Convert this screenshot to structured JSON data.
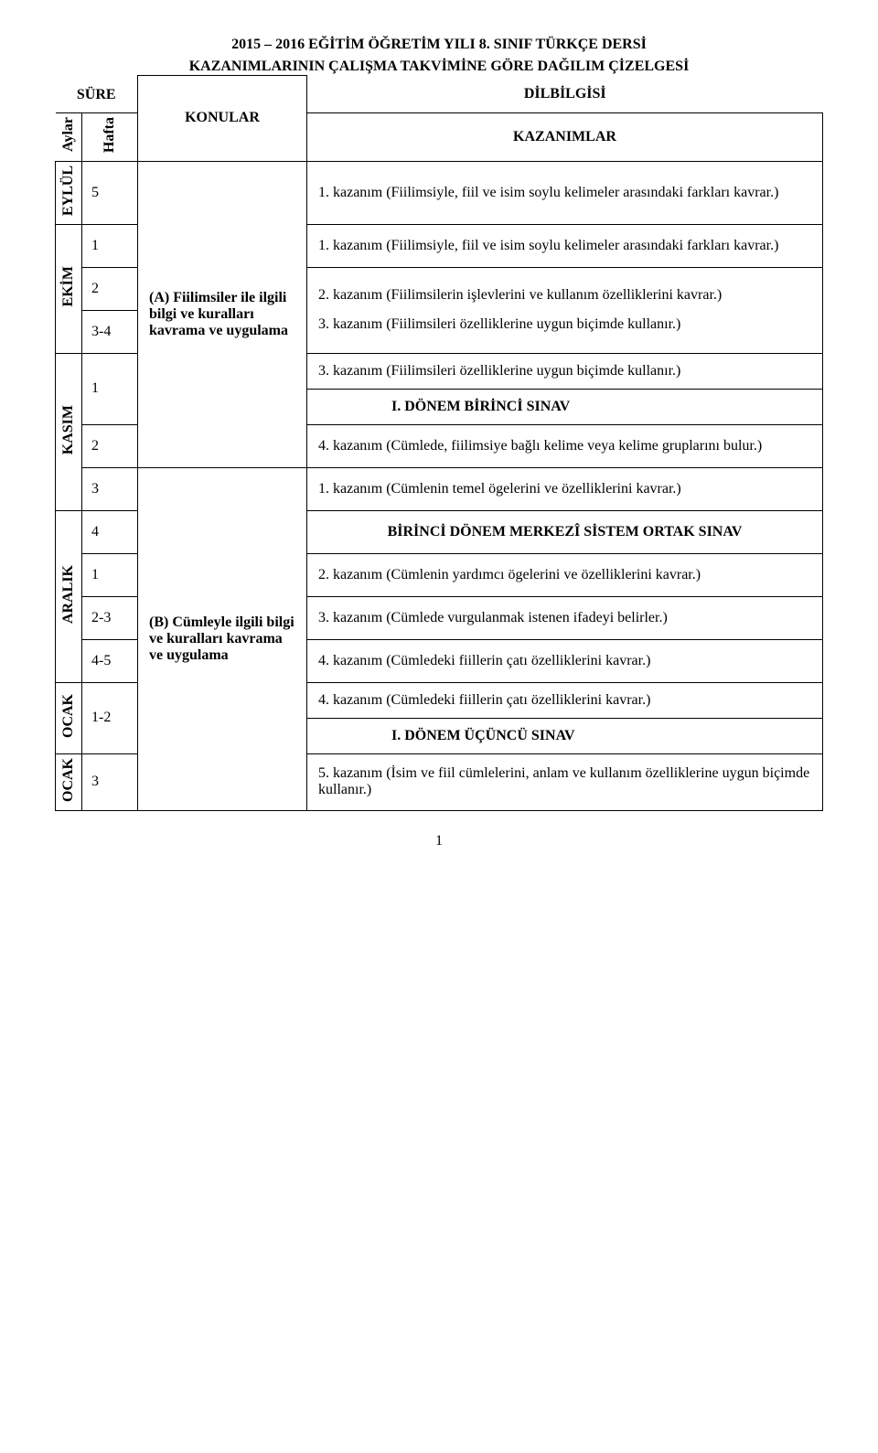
{
  "header": {
    "title1": "2015 – 2016 EĞİTİM ÖĞRETİM YILI 8. SINIF TÜRKÇE DERSİ",
    "title2": "KAZANIMLARININ ÇALIŞMA TAKVİMİNE GÖRE DAĞILIM ÇİZELGESİ",
    "dilbilgisi": "DİLBİLGİSİ",
    "sure": "SÜRE",
    "aylar": "Aylar",
    "hafta": "Hafta",
    "konular": "KONULAR",
    "kazanimlar": "KAZANIMLAR"
  },
  "months": {
    "eylul": "EYLÜL",
    "ekim": "EKİM",
    "kasim": "KASIM",
    "aralik": "ARALIK",
    "ocak1": "OCAK",
    "ocak2": "OCAK"
  },
  "weeks": {
    "w5": "5",
    "w1a": "1",
    "w2a": "2",
    "w34": "3-4",
    "w1b": "1",
    "w2b": "2",
    "w3": "3",
    "w4": "4",
    "w1c": "1",
    "w23": "2-3",
    "w45": "4-5",
    "w12": "1-2",
    "w3b": "3"
  },
  "topics": {
    "a": "(A)  Fiilimsiler ile ilgili bilgi ve kuralları kavrama ve uygulama",
    "b": "(B)  Cümleyle ilgili bilgi ve kuralları kavrama ve uygulama"
  },
  "kaz": {
    "k1": "1. kazanım (Fiilimsiyle, fiil ve isim soylu kelimeler arasındaki farkları kavrar.)",
    "k1b": "1. kazanım (Fiilimsiyle, fiil ve isim soylu kelimeler arasındaki farkları kavrar.)",
    "k2": "2. kazanım (Fiilimsilerin işlevlerini ve kullanım özelliklerini kavrar.)",
    "k3": "3. kazanım (Fiilimsileri özelliklerine uygun biçimde kullanır.)",
    "k3b": "3. kazanım (Fiilimsileri özelliklerine uygun biçimde kullanır.)",
    "exam1": "I.    DÖNEM BİRİNCİ SINAV",
    "k4": "4. kazanım (Cümlede, fiilimsiye bağlı kelime veya kelime gruplarını bulur.)",
    "c1": "1. kazanım (Cümlenin temel ögelerini ve özelliklerini kavrar.)",
    "merkezi": "BİRİNCİ DÖNEM MERKEZÎ SİSTEM ORTAK SINAV",
    "c2": "2. kazanım (Cümlenin yardımcı ögelerini ve özelliklerini kavrar.)",
    "c3": "3. kazanım (Cümlede vurgulanmak istenen ifadeyi belirler.)",
    "c4": "4. kazanım (Cümledeki fiillerin çatı özelliklerini kavrar.)",
    "c4b": "4. kazanım (Cümledeki fiillerin çatı özelliklerini kavrar.)",
    "exam3": "I.    DÖNEM ÜÇÜNCÜ SINAV",
    "c5": "5. kazanım (İsim ve fiil cümlelerini, anlam ve kullanım özelliklerine uygun biçimde kullanır.)"
  },
  "page_num": "1"
}
